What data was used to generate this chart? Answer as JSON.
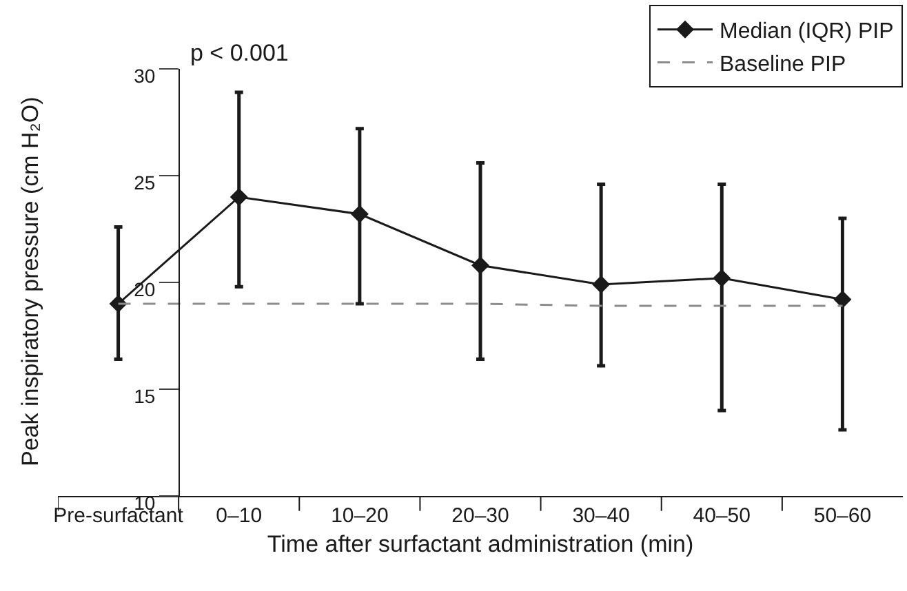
{
  "chart_data": {
    "type": "line",
    "xlabel": "Time after surfactant administration (min)",
    "ylabel": "Peak inspiratory pressure (cm H₂O)",
    "categories": [
      "Pre-surfactant",
      "0–10",
      "10–20",
      "20–30",
      "30–40",
      "40–50",
      "50–60"
    ],
    "series": [
      {
        "name": "Median (IQR) PIP",
        "color": "#1a1a1a",
        "marker": "diamond",
        "line_style": "solid",
        "values": [
          19.0,
          24.0,
          23.2,
          20.8,
          19.9,
          20.2,
          19.2
        ],
        "errors": [
          [
            16.4,
            22.6
          ],
          [
            19.8,
            28.9
          ],
          [
            19.0,
            27.2
          ],
          [
            16.4,
            25.6
          ],
          [
            16.1,
            24.6
          ],
          [
            14.0,
            24.6
          ],
          [
            13.1,
            23.0
          ]
        ]
      },
      {
        "name": "Baseline PIP",
        "color": "#8c8c8c",
        "marker": "none",
        "line_style": "dashed",
        "values": [
          19.0,
          19.0,
          19.0,
          19.0,
          18.9,
          18.9,
          18.9
        ]
      }
    ],
    "annotations": [
      "p < 0.001"
    ],
    "ylim": [
      10,
      30
    ],
    "yticks": [
      10,
      15,
      20,
      25,
      30
    ],
    "legend": "top right"
  }
}
